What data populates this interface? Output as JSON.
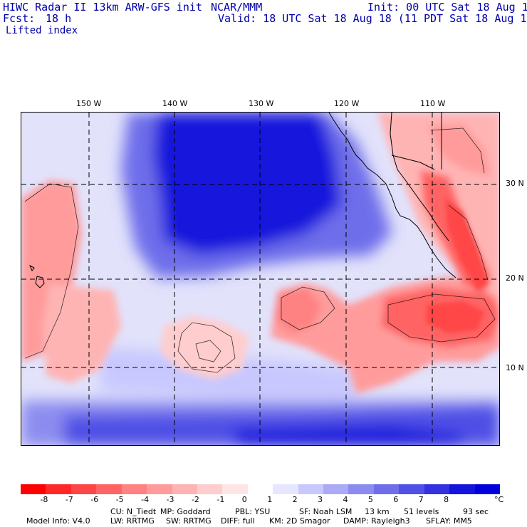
{
  "header": {
    "model": "HIWC Radar II 13km ARW-GFS init",
    "center": "NCAR/MMM",
    "init": "Init: 00 UTC Sat 18 Aug 18",
    "fcst_label": "Fcst:",
    "fcst_value": "18 h",
    "valid": "Valid: 18 UTC Sat 18 Aug 18 (11 PDT Sat 18 Aug 18)",
    "field": "Lifted index"
  },
  "map": {
    "lon_labels": [
      "150 W",
      "140 W",
      "130 W",
      "120 W",
      "110 W"
    ],
    "lat_labels": [
      "30 N",
      "20 N",
      "10 N"
    ]
  },
  "colorbar": {
    "labels": [
      "-8",
      "-7",
      "-6",
      "-5",
      "-4",
      "-3",
      "-2",
      "-1",
      "0",
      "1",
      "2",
      "3",
      "4",
      "5",
      "6",
      "7",
      "8"
    ],
    "unit": "°C",
    "colors": [
      "#ff0000",
      "#ff2828",
      "#ff4646",
      "#ff6464",
      "#ff8282",
      "#ff9b9b",
      "#ffb4b4",
      "#ffcdcd",
      "#ffe6e6",
      "#ffffff",
      "#e6e6ff",
      "#c8c8ff",
      "#aaaaf5",
      "#8c8cf0",
      "#6e6eeb",
      "#5050e6",
      "#3232e1",
      "#1414dc",
      "#0000dc"
    ]
  },
  "footer": {
    "line1": [
      "Model Info: V4.0",
      "CU: N_Tiedt",
      "MP: Goddard",
      "PBL: YSU",
      "SF: Noah LSM",
      "13 km",
      "51 levels",
      "93 sec"
    ],
    "line2": [
      "LW: RRTMG",
      "SW: RRTMG",
      "DIFF: full",
      "KM: 2D Smagor",
      "DAMP: Rayleigh3",
      "SFLAY: MM5"
    ]
  }
}
